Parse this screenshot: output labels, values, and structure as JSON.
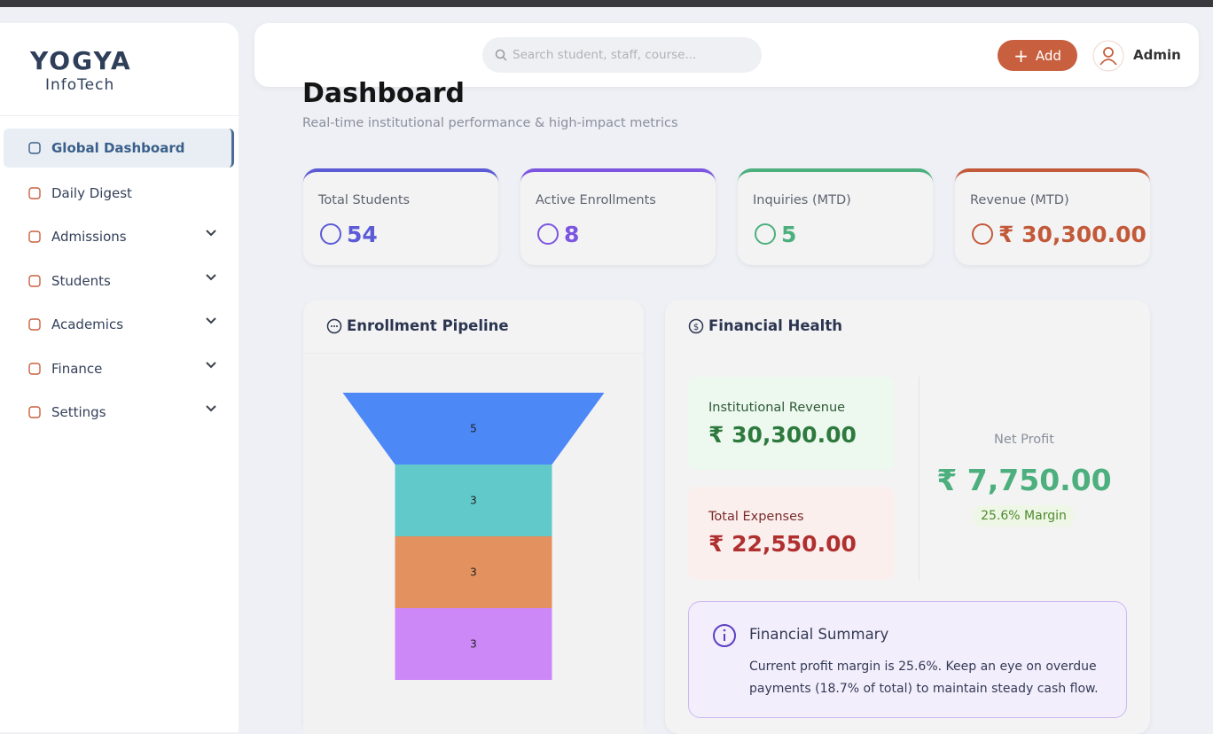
{
  "brand": {
    "name": "YOGYA",
    "sub": "InfoTech"
  },
  "search": {
    "placeholder": "Search student, staff, course..."
  },
  "header": {
    "add_button": "Add",
    "user": "Admin"
  },
  "nav": [
    "Global Dashboard",
    "Daily Digest",
    "Admissions",
    "Students",
    "Academics",
    "Finance",
    "Settings"
  ],
  "page": {
    "title": "Dashboard",
    "subtitle": "Real-time institutional performance & high-impact metrics"
  },
  "stats": [
    {
      "label": "Total Students",
      "value": "54",
      "color": "#5b5bd6"
    },
    {
      "label": "Active Enrollments",
      "value": "8",
      "color": "#7c55e0"
    },
    {
      "label": "Inquiries (MTD)",
      "value": "5",
      "color": "#4caf7d"
    },
    {
      "label": "Revenue (MTD)",
      "value": "₹ 30,300.00",
      "color": "#c25a3a"
    }
  ],
  "pipeline": {
    "title": "Enrollment Pipeline",
    "values": [
      5,
      3,
      3,
      3
    ],
    "colors": [
      "#4d88f7",
      "#62c9cb",
      "#e2915f",
      "#cd88f8"
    ]
  },
  "finance": {
    "title": "Financial Health",
    "revenue": {
      "label": "Institutional Revenue",
      "value": "₹ 30,300.00"
    },
    "expenses": {
      "label": "Total Expenses",
      "value": "₹ 22,550.00"
    },
    "net_profit": {
      "label": "Net Profit",
      "value": "₹ 7,750.00",
      "margin": "25.6% Margin"
    },
    "summary": {
      "title": "Financial Summary",
      "text": "Current profit margin is 25.6%. Keep an eye on overdue payments (18.7% of total) to maintain steady cash flow."
    }
  }
}
